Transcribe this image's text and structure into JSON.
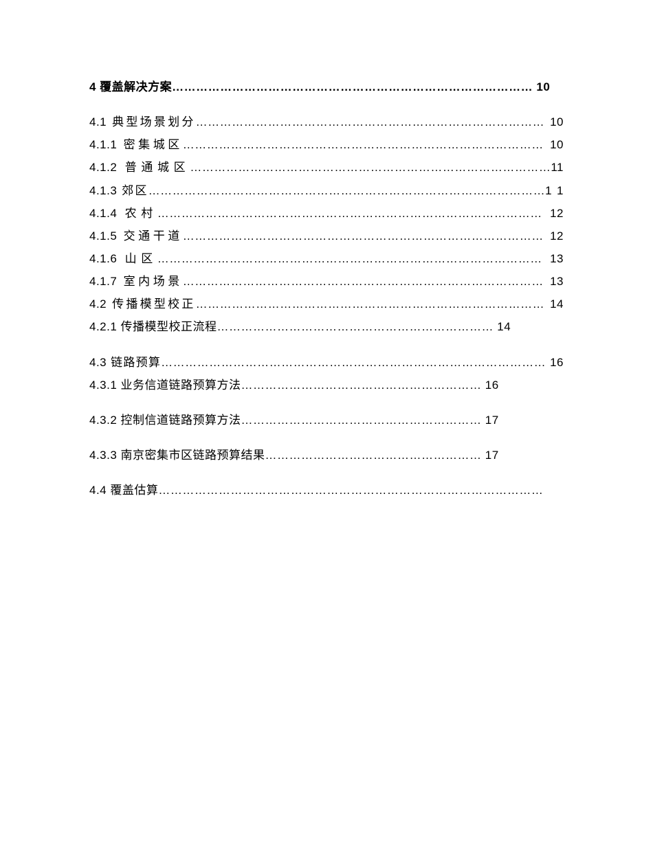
{
  "blocks": [
    {
      "bold": true,
      "text": "4 覆盖解决方案……………………………………………………………………………… 10"
    },
    {
      "bold": false,
      "text": "4.1 典型场景划分…………………………………………………………………………… 10 4.1.1 密集城区……………………………………………………………………………… 10 4.1.2 普通城区………………………………………………………………………………11 4.1.3 郊区………………………………………………………………………………………1 1 4.1.4 农村…………………………………………………………………………………… 12 4.1.5 交通干道……………………………………………………………………………… 12 4.1.6 山区…………………………………………………………………………………… 13 4.1.7 室内场景……………………………………………………………………………… 13 4.2 传播模型校正…………………………………………………………………………… 14 4.2.1 传播模型校正流程…………………………………………………………… 14"
    },
    {
      "bold": false,
      "text": "4.3 链路预算…………………………………………………………………………………… 16 4.3.1 业务信道链路预算方法…………………………………………………… 16"
    },
    {
      "bold": false,
      "text": "4.3.2 控制信道链路预算方法…………………………………………………… 17"
    },
    {
      "bold": false,
      "text": "4.3.3 南京密集市区链路预算结果……………………………………………… 17"
    },
    {
      "bold": false,
      "text": "4.4 覆盖估算……………………………………………………………………………………"
    }
  ]
}
